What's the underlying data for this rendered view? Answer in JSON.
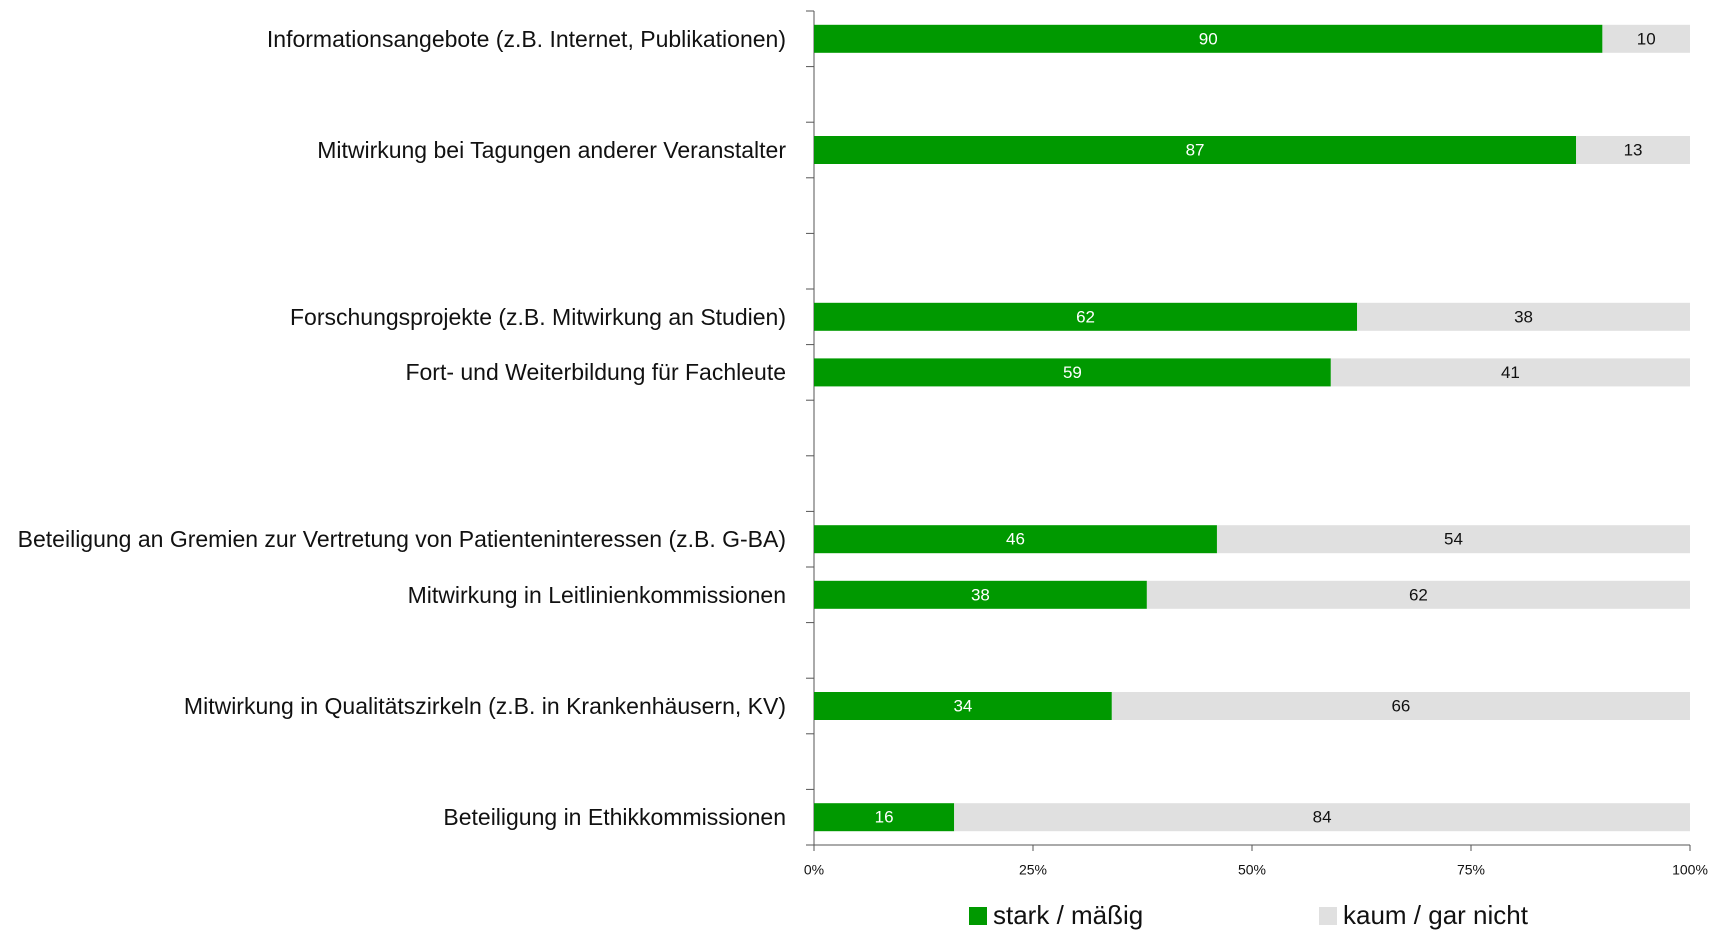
{
  "chart_data": {
    "type": "stacked-barh",
    "categories": [
      "Informationsangebote (z.B. Internet, Publikationen)",
      null,
      "Mitwirkung bei Tagungen anderer Veranstalter",
      null,
      null,
      "Forschungsprojekte (z.B. Mitwirkung an Studien)",
      "Fort- und Weiterbildung für Fachleute",
      null,
      null,
      "Beteiligung an Gremien zur Vertretung von Patienteninteressen (z.B. G-BA)",
      "Mitwirkung in Leitlinienkommissionen",
      null,
      "Mitwirkung in Qualitätszirkeln (z.B. in Krankenhäusern, KV)",
      null,
      "Beteiligung in Ethikkommissionen"
    ],
    "series": [
      {
        "name": "stark / mäßig",
        "color": "#009900",
        "label_color": "#ffffff",
        "values": [
          90,
          null,
          87,
          null,
          null,
          62,
          59,
          null,
          null,
          46,
          38,
          null,
          34,
          null,
          16
        ]
      },
      {
        "name": "kaum / gar nicht",
        "color": "#e0e0e0",
        "label_color": "#111111",
        "values": [
          10,
          null,
          13,
          null,
          null,
          38,
          41,
          null,
          null,
          54,
          62,
          null,
          66,
          null,
          84
        ]
      }
    ],
    "xlim": [
      0,
      100
    ],
    "xticks": [
      {
        "value": 0,
        "label": "0%"
      },
      {
        "value": 25,
        "label": "25%"
      },
      {
        "value": 50,
        "label": "50%"
      },
      {
        "value": 75,
        "label": "75%"
      },
      {
        "value": 100,
        "label": "100%"
      }
    ],
    "legend": "bottom"
  }
}
